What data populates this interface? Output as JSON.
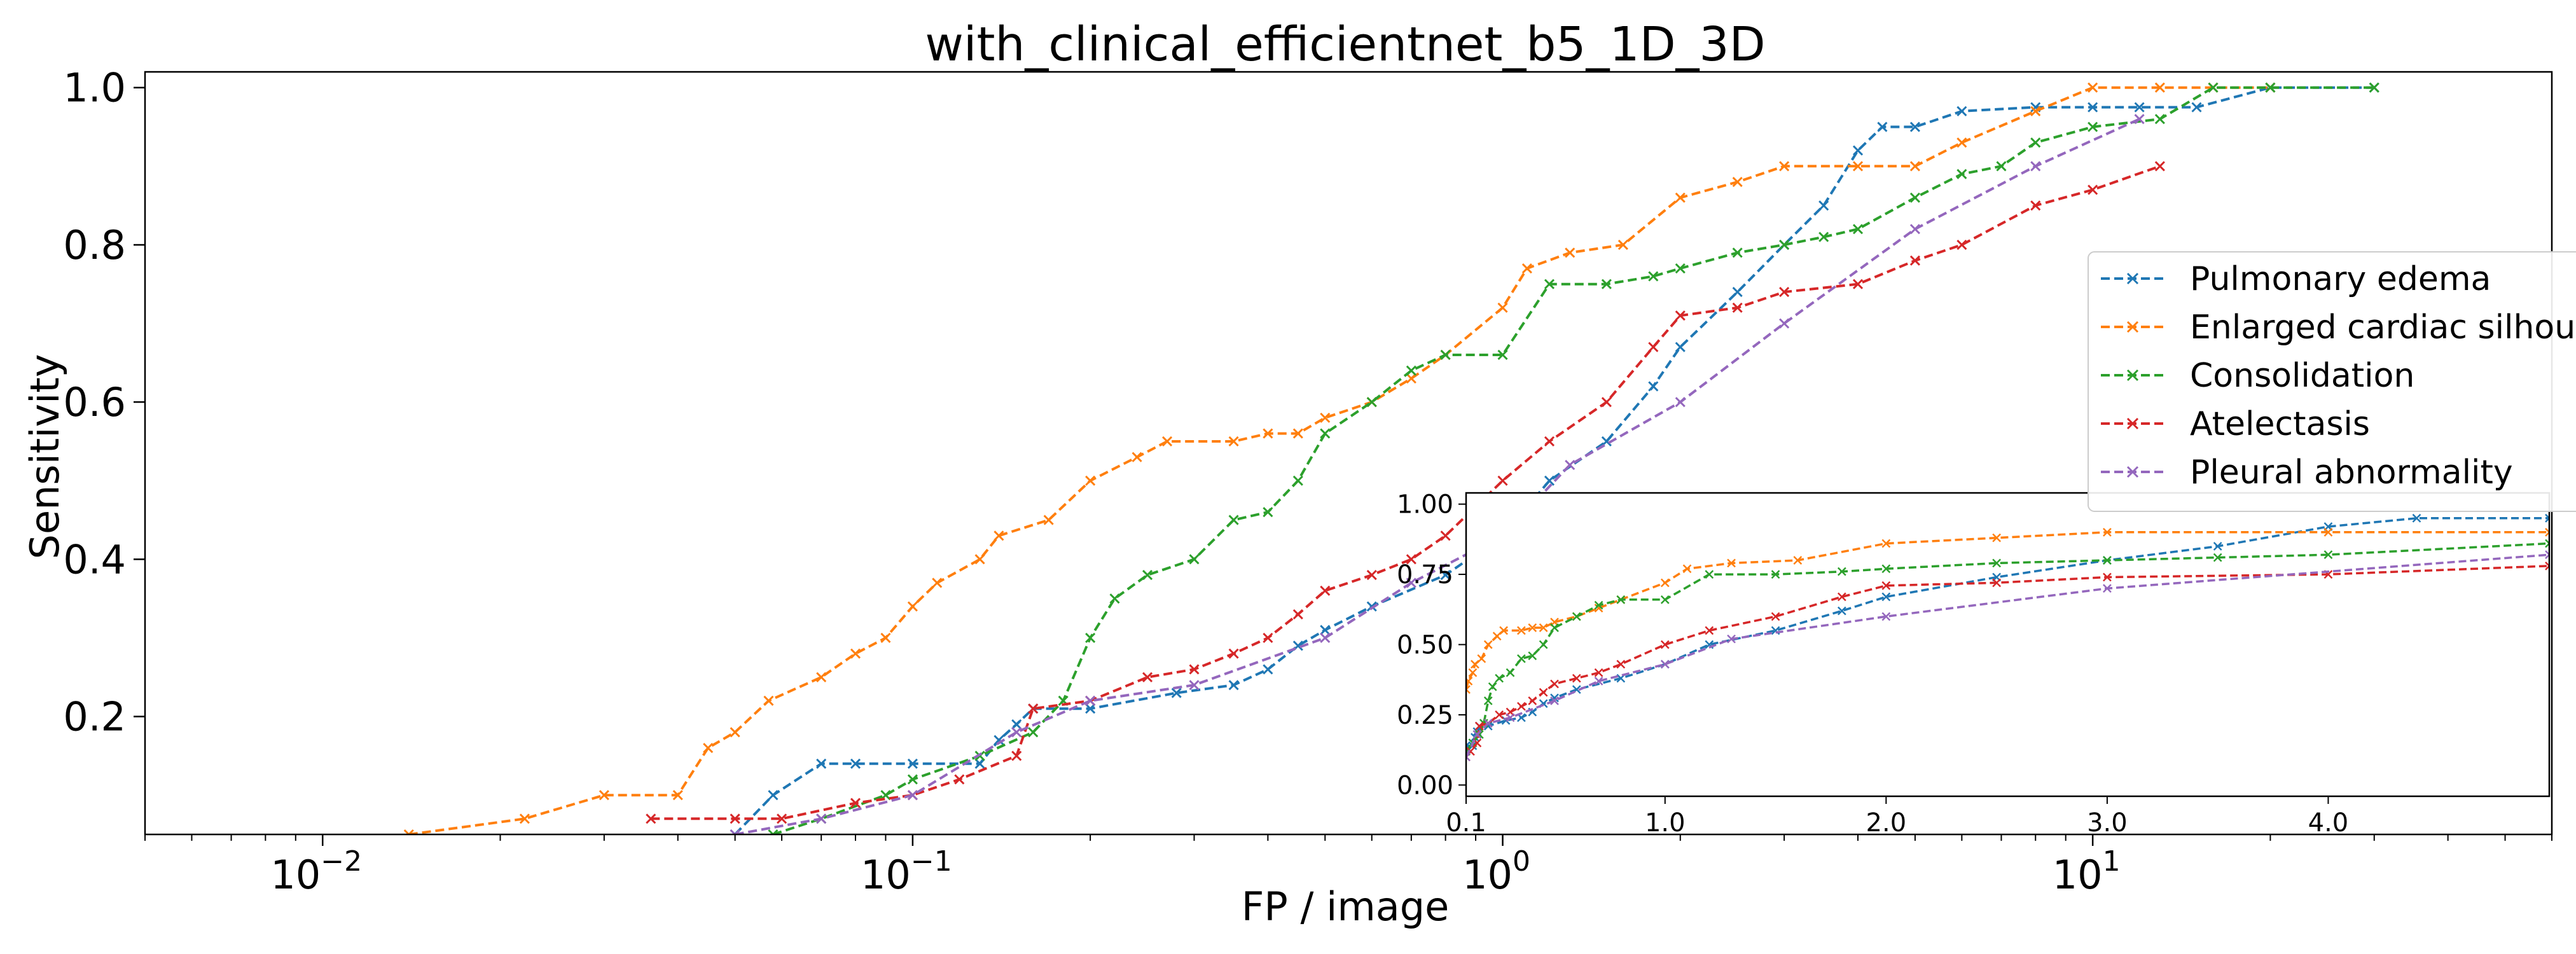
{
  "chart_data": {
    "type": "line",
    "title": "with_clinical_efficientnet_b5_1D_3D",
    "xlabel": "FP / image",
    "ylabel": "Sensitivity",
    "xscale": "log",
    "xlim": [
      0.005,
      60
    ],
    "ylim": [
      0.05,
      1.02
    ],
    "grid": false,
    "legend_position": "right",
    "x_ticks": [
      0.01,
      0.1,
      1,
      10
    ],
    "x_tick_labels": [
      "10",
      "10",
      "10",
      "10"
    ],
    "x_tick_exponents": [
      "−2",
      "−1",
      "0",
      "1"
    ],
    "y_ticks": [
      0.2,
      0.4,
      0.6,
      0.8,
      1.0
    ],
    "y_tick_labels": [
      "0.2",
      "0.4",
      "0.6",
      "0.8",
      "1.0"
    ],
    "series": [
      {
        "name": "Pulmonary edema",
        "color": "#1f77b4",
        "x": [
          0.05,
          0.058,
          0.07,
          0.08,
          0.1,
          0.13,
          0.14,
          0.15,
          0.16,
          0.2,
          0.28,
          0.35,
          0.4,
          0.45,
          0.5,
          0.6,
          0.8,
          1.0,
          1.2,
          1.5,
          1.8,
          2.0,
          2.5,
          3.0,
          3.5,
          4.0,
          4.4,
          5.0,
          6.0,
          8.0,
          10.0,
          12.0,
          15.0,
          20.0,
          30.0
        ],
        "y": [
          0.05,
          0.1,
          0.14,
          0.14,
          0.14,
          0.14,
          0.17,
          0.19,
          0.21,
          0.21,
          0.23,
          0.24,
          0.26,
          0.29,
          0.31,
          0.34,
          0.38,
          0.43,
          0.5,
          0.55,
          0.62,
          0.67,
          0.74,
          0.8,
          0.85,
          0.92,
          0.95,
          0.95,
          0.97,
          0.975,
          0.975,
          0.975,
          0.975,
          1.0,
          1.0
        ]
      },
      {
        "name": "Enlarged cardiac silhouette",
        "color": "#ff7f0e",
        "x": [
          0.014,
          0.022,
          0.03,
          0.04,
          0.045,
          0.05,
          0.057,
          0.07,
          0.08,
          0.09,
          0.1,
          0.11,
          0.13,
          0.14,
          0.17,
          0.2,
          0.24,
          0.27,
          0.35,
          0.4,
          0.45,
          0.5,
          0.6,
          0.7,
          0.8,
          1.0,
          1.1,
          1.3,
          1.6,
          2.0,
          2.5,
          3.0,
          4.0,
          5.0,
          6.0,
          8.0,
          10.0,
          13.0,
          16.0,
          20.0
        ],
        "y": [
          0.05,
          0.07,
          0.1,
          0.1,
          0.16,
          0.18,
          0.22,
          0.25,
          0.28,
          0.3,
          0.34,
          0.37,
          0.4,
          0.43,
          0.45,
          0.5,
          0.53,
          0.55,
          0.55,
          0.56,
          0.56,
          0.58,
          0.6,
          0.63,
          0.66,
          0.72,
          0.77,
          0.79,
          0.8,
          0.86,
          0.88,
          0.9,
          0.9,
          0.9,
          0.93,
          0.97,
          1.0,
          1.0,
          1.0,
          1.0
        ]
      },
      {
        "name": "Consolidation",
        "color": "#2ca02c",
        "x": [
          0.058,
          0.07,
          0.09,
          0.1,
          0.13,
          0.16,
          0.18,
          0.2,
          0.22,
          0.25,
          0.3,
          0.35,
          0.4,
          0.45,
          0.5,
          0.6,
          0.7,
          0.8,
          1.0,
          1.2,
          1.5,
          1.8,
          2.0,
          2.5,
          3.0,
          3.5,
          4.0,
          5.0,
          6.0,
          7.0,
          8.0,
          10.0,
          13.0,
          16.0,
          20.0,
          30.0
        ],
        "y": [
          0.05,
          0.07,
          0.1,
          0.12,
          0.15,
          0.18,
          0.22,
          0.3,
          0.35,
          0.38,
          0.4,
          0.45,
          0.46,
          0.5,
          0.56,
          0.6,
          0.64,
          0.66,
          0.66,
          0.75,
          0.75,
          0.76,
          0.77,
          0.79,
          0.8,
          0.81,
          0.82,
          0.86,
          0.89,
          0.9,
          0.93,
          0.95,
          0.96,
          1.0,
          1.0,
          1.0
        ]
      },
      {
        "name": "Atelectasis",
        "color": "#d62728",
        "x": [
          0.036,
          0.05,
          0.06,
          0.08,
          0.1,
          0.12,
          0.15,
          0.16,
          0.2,
          0.25,
          0.3,
          0.35,
          0.4,
          0.45,
          0.5,
          0.6,
          0.7,
          0.8,
          1.0,
          1.2,
          1.5,
          1.8,
          2.0,
          2.5,
          3.0,
          4.0,
          5.0,
          6.0,
          8.0,
          10.0,
          13.0
        ],
        "y": [
          0.07,
          0.07,
          0.07,
          0.09,
          0.1,
          0.12,
          0.15,
          0.21,
          0.22,
          0.25,
          0.26,
          0.28,
          0.3,
          0.33,
          0.36,
          0.38,
          0.4,
          0.43,
          0.5,
          0.55,
          0.6,
          0.67,
          0.71,
          0.72,
          0.74,
          0.75,
          0.78,
          0.8,
          0.85,
          0.87,
          0.9
        ]
      },
      {
        "name": "Pleural abnormality",
        "color": "#9467bd",
        "x": [
          0.05,
          0.07,
          0.1,
          0.15,
          0.2,
          0.3,
          0.5,
          0.7,
          1.0,
          1.3,
          2.0,
          3.0,
          5.0,
          8.0,
          12.0
        ],
        "y": [
          0.05,
          0.07,
          0.1,
          0.18,
          0.22,
          0.24,
          0.3,
          0.37,
          0.43,
          0.52,
          0.6,
          0.7,
          0.82,
          0.9,
          0.96
        ]
      }
    ],
    "inset": {
      "xlim": [
        0.1,
        5.0
      ],
      "ylim": [
        -0.04,
        1.04
      ],
      "x_ticks": [
        0.1,
        1.0,
        2.0,
        3.0,
        4.0
      ],
      "x_tick_labels": [
        "0.1",
        "1.0",
        "2.0",
        "3.0",
        "4.0"
      ],
      "y_ticks": [
        0.0,
        0.25,
        0.5,
        0.75,
        1.0
      ],
      "y_tick_labels": [
        "0.00",
        "0.25",
        "0.50",
        "0.75",
        "1.00"
      ]
    }
  }
}
